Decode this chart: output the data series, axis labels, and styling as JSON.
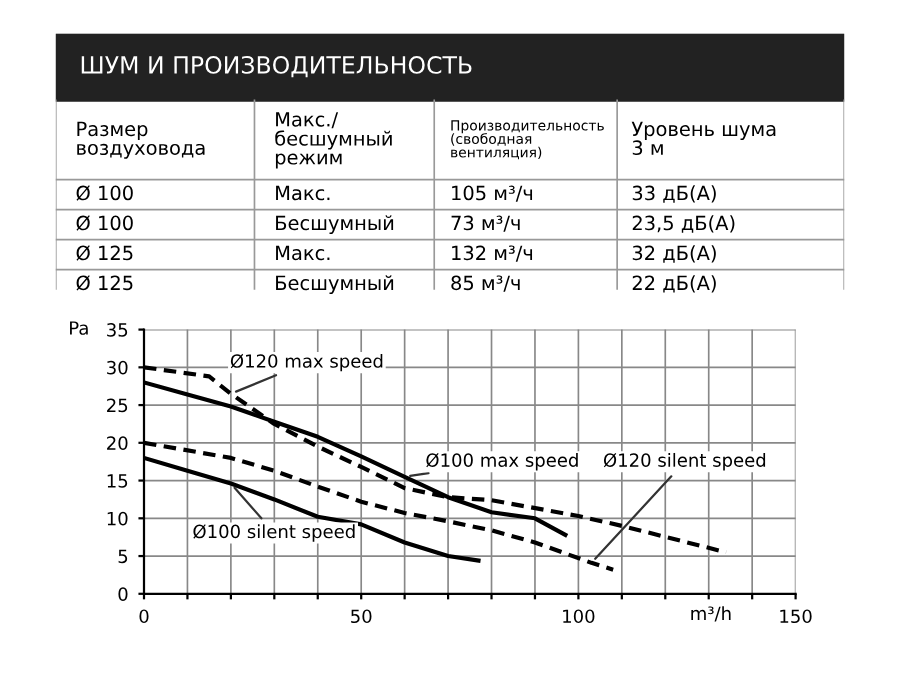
{
  "chart_data": [
    {
      "type": "other",
      "title": "ШУМ И ПРОИЗВОДИТЕЛЬНОСТЬ",
      "annotations": [
        "Размер\nвоздуховода",
        "Макс./\nбесшумный\nрежим",
        "Производительность\n(свободная\nвентиляция)",
        "Уровень шума\n3 м",
        "Ø 100",
        "Макс.",
        "105 м³/ч",
        "33 дБ(А)",
        "Ø 100",
        "Бесшумный",
        "73 м³/ч",
        "23,5 дБ(А)",
        "Ø 125",
        "Макс.",
        "132 м³/ч",
        "32 дБ(А)",
        "Ø 125",
        "Бесшумный",
        "85 м³/ч",
        "22 дБ(А)"
      ]
    },
    {
      "type": "line",
      "xlabel": "m³/h",
      "ylabel": "Pa",
      "xlim": [
        0,
        150
      ],
      "ylim": [
        0,
        35
      ],
      "xticks": [
        0,
        {
          "value": 10,
          "label": null
        },
        {
          "value": 20,
          "label": null
        },
        {
          "value": 30,
          "label": null
        },
        {
          "value": 40,
          "label": null
        },
        50,
        {
          "value": 60,
          "label": null
        },
        {
          "value": 70,
          "label": null
        },
        {
          "value": 80,
          "label": null
        },
        {
          "value": 90,
          "label": null
        },
        100,
        {
          "value": 110,
          "label": null
        },
        {
          "value": 120,
          "label": null
        },
        {
          "value": 130,
          "label": null
        },
        {
          "value": 140,
          "label": null
        },
        150
      ],
      "yticks": [
        0,
        5,
        10,
        15,
        20,
        25,
        30,
        35
      ],
      "grid": true,
      "legend": false,
      "series": [
        {
          "name": "Ø120 max speed",
          "color": "#000000",
          "line_style": "dashed",
          "x": [
            0,
            15,
            20,
            30,
            40,
            50,
            60,
            70,
            80,
            100,
            110,
            134
          ],
          "values": [
            30,
            28.8,
            26.5,
            22.5,
            19.5,
            16.8,
            14,
            12.8,
            12.4,
            10.3,
            9,
            5.5
          ]
        },
        {
          "name": "Ø100 max speed",
          "color": "#000000",
          "line_style": "solid",
          "x": [
            0,
            10,
            20,
            30,
            40,
            50,
            60,
            70,
            80,
            90,
            97
          ],
          "values": [
            28,
            26.4,
            24.8,
            22.8,
            20.8,
            18.2,
            15.5,
            12.8,
            10.8,
            10,
            7.8
          ]
        },
        {
          "name": "Ø120 silent speed",
          "color": "#000000",
          "line_style": "dashed",
          "x": [
            0,
            20,
            30,
            40,
            50,
            60,
            70,
            80,
            90,
            103,
            108
          ],
          "values": [
            20,
            18,
            16.3,
            14.2,
            12.2,
            10.7,
            9.6,
            8.4,
            6.8,
            4.1,
            3.2
          ]
        },
        {
          "name": "Ø100 silent speed",
          "color": "#000000",
          "line_style": "solid",
          "x": [
            0,
            10,
            20,
            30,
            40,
            50,
            60,
            70,
            77
          ],
          "values": [
            18,
            16.3,
            14.6,
            12.5,
            10.2,
            9.2,
            6.8,
            5,
            4.4
          ]
        }
      ]
    }
  ]
}
